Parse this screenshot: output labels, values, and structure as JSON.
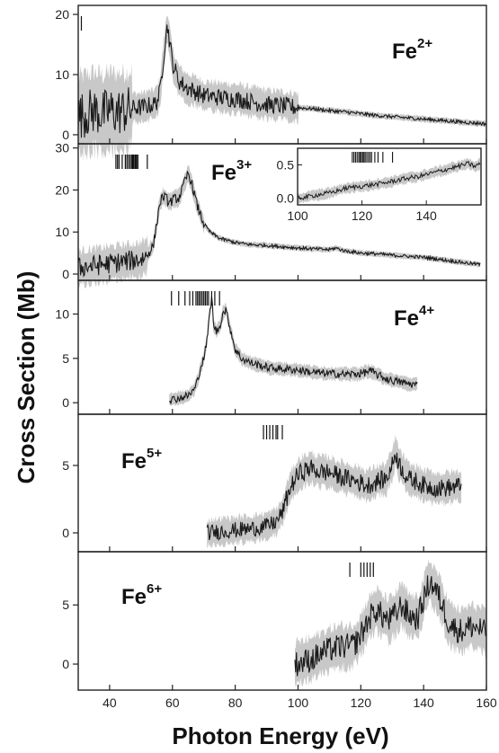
{
  "chart_data": {
    "type": "line",
    "xlabel": "Photon Energy (eV)",
    "ylabel": "Cross Section (Mb)",
    "xlim": [
      30,
      160
    ],
    "x_ticks": [
      40,
      60,
      80,
      100,
      120,
      140,
      160
    ],
    "panels": [
      {
        "ion": "Fe",
        "charge": "2+",
        "ylim": [
          -1.5,
          21.5
        ],
        "y_ticks": [
          0,
          10,
          20
        ],
        "x_range": [
          30,
          160
        ],
        "threshold_lines": [
          31
        ],
        "points": [
          [
            30,
            3
          ],
          [
            32,
            3.5
          ],
          [
            35,
            4
          ],
          [
            38,
            3.5
          ],
          [
            40,
            4
          ],
          [
            42,
            3.8
          ],
          [
            45,
            4
          ],
          [
            48,
            4.5
          ],
          [
            50,
            4.5
          ],
          [
            52,
            4.8
          ],
          [
            54,
            5
          ],
          [
            55,
            5.5
          ],
          [
            56,
            7
          ],
          [
            57,
            12
          ],
          [
            58,
            17
          ],
          [
            58.5,
            18
          ],
          [
            59,
            16
          ],
          [
            60,
            12
          ],
          [
            62,
            9
          ],
          [
            64,
            8
          ],
          [
            66,
            7.5
          ],
          [
            68,
            7
          ],
          [
            70,
            6.5
          ],
          [
            75,
            6.2
          ],
          [
            80,
            6
          ],
          [
            85,
            5.5
          ],
          [
            90,
            5
          ],
          [
            95,
            4.8
          ],
          [
            100,
            4.5
          ],
          [
            105,
            4.3
          ],
          [
            110,
            4
          ],
          [
            115,
            3.8
          ],
          [
            120,
            3.5
          ],
          [
            125,
            3.2
          ],
          [
            130,
            3
          ],
          [
            135,
            2.8
          ],
          [
            140,
            2.6
          ],
          [
            145,
            2.4
          ],
          [
            150,
            2.2
          ],
          [
            155,
            2
          ],
          [
            160,
            1.8
          ]
        ],
        "noise": [
          {
            "x": [
              30,
              47
            ],
            "amp": 4
          },
          {
            "x": [
              47,
              56
            ],
            "amp": 1.5
          },
          {
            "x": [
              56,
              100
            ],
            "amp": 1.5
          },
          {
            "x": [
              100,
              160
            ],
            "amp": 0.3
          }
        ]
      },
      {
        "ion": "Fe",
        "charge": "3+",
        "ylim": [
          -1.5,
          31
        ],
        "y_ticks": [
          0,
          10,
          20,
          30
        ],
        "x_range": [
          30,
          158
        ],
        "threshold_lines": [
          42,
          42.5,
          43,
          44,
          45,
          45.5,
          46,
          46.5,
          47,
          47.3,
          47.6,
          48,
          48.3,
          48.6,
          49,
          52
        ],
        "points": [
          [
            30,
            1.5
          ],
          [
            35,
            2
          ],
          [
            40,
            2.5
          ],
          [
            45,
            3
          ],
          [
            50,
            3.5
          ],
          [
            52,
            4.5
          ],
          [
            54,
            7
          ],
          [
            55,
            12
          ],
          [
            56,
            17
          ],
          [
            57,
            18.5
          ],
          [
            58,
            18
          ],
          [
            59,
            17
          ],
          [
            60,
            17.5
          ],
          [
            61,
            18
          ],
          [
            62,
            18
          ],
          [
            63,
            20
          ],
          [
            64,
            22
          ],
          [
            65,
            24
          ],
          [
            66,
            22
          ],
          [
            67,
            19
          ],
          [
            68,
            16
          ],
          [
            70,
            12
          ],
          [
            72,
            10
          ],
          [
            75,
            8.5
          ],
          [
            80,
            7.5
          ],
          [
            85,
            7
          ],
          [
            90,
            6.8
          ],
          [
            95,
            6.5
          ],
          [
            100,
            6.2
          ],
          [
            105,
            6
          ],
          [
            110,
            5.8
          ],
          [
            112,
            6.2
          ],
          [
            115,
            5.5
          ],
          [
            120,
            5
          ],
          [
            125,
            4.8
          ],
          [
            130,
            4.5
          ],
          [
            135,
            4.2
          ],
          [
            140,
            4
          ],
          [
            145,
            3.5
          ],
          [
            150,
            3
          ],
          [
            155,
            2.5
          ],
          [
            158,
            2.3
          ]
        ],
        "noise": [
          {
            "x": [
              30,
              52
            ],
            "amp": 2.5
          },
          {
            "x": [
              52,
              70
            ],
            "amp": 1.2
          },
          {
            "x": [
              70,
              158
            ],
            "amp": 0.4
          }
        ],
        "inset": {
          "xlim": [
            100,
            157
          ],
          "ylim": [
            -0.1,
            0.75
          ],
          "x_ticks": [
            100,
            120,
            140
          ],
          "y_ticks": [
            0.0,
            0.5
          ],
          "threshold_lines": [
            117,
            117.5,
            118,
            118.5,
            119,
            119.4,
            119.8,
            120.2,
            120.6,
            121,
            121.5,
            122,
            122.5,
            123,
            124,
            125,
            126.5,
            129.5
          ],
          "points": [
            [
              100,
              0
            ],
            [
              103,
              0.02
            ],
            [
              106,
              0.05
            ],
            [
              110,
              0.08
            ],
            [
              113,
              0.12
            ],
            [
              115,
              0.15
            ],
            [
              118,
              0.17
            ],
            [
              120,
              0.18
            ],
            [
              123,
              0.2
            ],
            [
              126,
              0.22
            ],
            [
              130,
              0.26
            ],
            [
              134,
              0.3
            ],
            [
              138,
              0.33
            ],
            [
              142,
              0.38
            ],
            [
              146,
              0.43
            ],
            [
              150,
              0.48
            ],
            [
              153,
              0.52
            ],
            [
              155,
              0.48
            ],
            [
              157,
              0.52
            ]
          ],
          "noise_amp": 0.05
        }
      },
      {
        "ion": "Fe",
        "charge": "4+",
        "ylim": [
          -1.3,
          13.8
        ],
        "y_ticks": [
          0,
          5,
          10
        ],
        "x_range": [
          59,
          138
        ],
        "threshold_lines": [
          59.7,
          62,
          64,
          65.5,
          66.5,
          67.5,
          68,
          68.5,
          69,
          69.5,
          70,
          70.5,
          71,
          71.5,
          72.5,
          73.5,
          75
        ],
        "points": [
          [
            59,
            0.3
          ],
          [
            62,
            0.5
          ],
          [
            65,
            0.8
          ],
          [
            67,
            1.5
          ],
          [
            68,
            2.5
          ],
          [
            69,
            4
          ],
          [
            70,
            5
          ],
          [
            71,
            7
          ],
          [
            72,
            10.5
          ],
          [
            72.6,
            12
          ],
          [
            73,
            9
          ],
          [
            74,
            8
          ],
          [
            75,
            8.5
          ],
          [
            76,
            10
          ],
          [
            77,
            10.5
          ],
          [
            78,
            9
          ],
          [
            80,
            6
          ],
          [
            82,
            5
          ],
          [
            85,
            4.5
          ],
          [
            90,
            4
          ],
          [
            95,
            3.8
          ],
          [
            100,
            3.7
          ],
          [
            105,
            3.4
          ],
          [
            110,
            3.3
          ],
          [
            115,
            3.2
          ],
          [
            120,
            3.3
          ],
          [
            123,
            3.6
          ],
          [
            125,
            3.2
          ],
          [
            128,
            2.7
          ],
          [
            130,
            2.5
          ],
          [
            133,
            2.3
          ],
          [
            136,
            2.1
          ],
          [
            138,
            2
          ]
        ],
        "noise": [
          {
            "x": [
              59,
              138
            ],
            "amp": 0.45
          }
        ]
      },
      {
        "ion": "Fe",
        "charge": "5+",
        "ylim": [
          -1.4,
          8.8
        ],
        "y_ticks": [
          0,
          5
        ],
        "x_range": [
          71,
          152
        ],
        "threshold_lines": [
          89,
          90,
          91,
          92,
          93,
          93.5,
          95
        ],
        "points": [
          [
            71,
            0
          ],
          [
            75,
            0.1
          ],
          [
            80,
            0.2
          ],
          [
            85,
            0.3
          ],
          [
            90,
            0.5
          ],
          [
            93,
            0.8
          ],
          [
            95,
            1.5
          ],
          [
            97,
            3
          ],
          [
            99,
            4
          ],
          [
            101,
            4.5
          ],
          [
            104,
            4.8
          ],
          [
            107,
            4.5
          ],
          [
            110,
            4.5
          ],
          [
            113,
            4.2
          ],
          [
            116,
            4
          ],
          [
            119,
            3.8
          ],
          [
            122,
            3.5
          ],
          [
            125,
            3.8
          ],
          [
            128,
            4
          ],
          [
            130,
            5
          ],
          [
            131,
            6
          ],
          [
            132,
            5.2
          ],
          [
            135,
            4
          ],
          [
            138,
            3.8
          ],
          [
            140,
            3.5
          ],
          [
            145,
            3.3
          ],
          [
            150,
            3.4
          ],
          [
            152,
            3.5
          ]
        ],
        "noise": [
          {
            "x": [
              71,
              96
            ],
            "amp": 0.6
          },
          {
            "x": [
              96,
              152
            ],
            "amp": 0.7
          }
        ]
      },
      {
        "ion": "Fe",
        "charge": "6+",
        "ylim": [
          -2.2,
          9.5
        ],
        "y_ticks": [
          0,
          5
        ],
        "x_range": [
          99,
          160
        ],
        "threshold_lines": [
          116.5,
          120,
          121,
          122,
          123,
          124
        ],
        "points": [
          [
            99,
            0
          ],
          [
            102,
            0.2
          ],
          [
            105,
            0.5
          ],
          [
            108,
            1
          ],
          [
            111,
            1.3
          ],
          [
            114,
            1.5
          ],
          [
            117,
            1.5
          ],
          [
            119,
            2
          ],
          [
            121,
            3
          ],
          [
            123,
            4
          ],
          [
            125,
            4.6
          ],
          [
            127,
            4
          ],
          [
            129,
            3.7
          ],
          [
            131,
            4.2
          ],
          [
            133,
            5
          ],
          [
            135,
            4.2
          ],
          [
            138,
            3.8
          ],
          [
            140,
            5.5
          ],
          [
            142,
            7
          ],
          [
            144,
            6.2
          ],
          [
            146,
            5
          ],
          [
            148,
            3.5
          ],
          [
            150,
            3
          ],
          [
            152,
            2.8
          ],
          [
            155,
            3.2
          ],
          [
            158,
            3
          ],
          [
            160,
            2.5
          ]
        ],
        "noise": [
          {
            "x": [
              99,
              160
            ],
            "amp": 1.1
          }
        ]
      }
    ]
  }
}
